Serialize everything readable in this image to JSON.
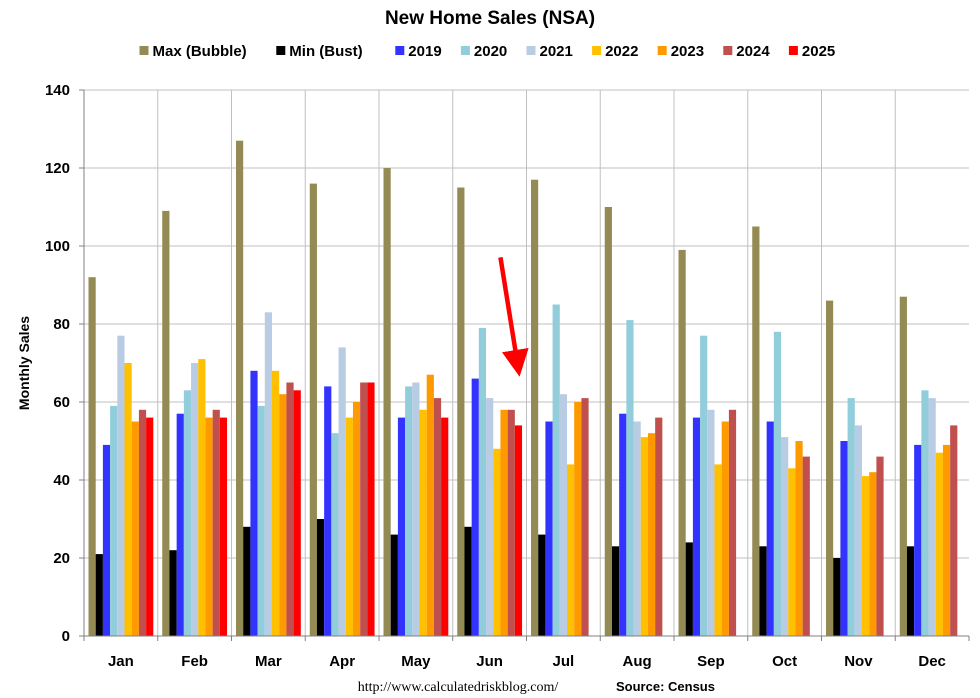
{
  "chart_data": {
    "type": "bar",
    "title": "New Home Sales (NSA)",
    "xlabel": "",
    "ylabel": "Monthly Sales",
    "ylim": [
      0,
      140
    ],
    "yticks": [
      0,
      20,
      40,
      60,
      80,
      100,
      120,
      140
    ],
    "grid": "horizontal",
    "legend_position": "top",
    "categories": [
      "Jan",
      "Feb",
      "Mar",
      "Apr",
      "May",
      "Jun",
      "Jul",
      "Aug",
      "Sep",
      "Oct",
      "Nov",
      "Dec"
    ],
    "series": [
      {
        "name": "Max (Bubble)",
        "color": "#948a54",
        "values": [
          92,
          109,
          127,
          116,
          120,
          115,
          117,
          110,
          99,
          105,
          86,
          87
        ]
      },
      {
        "name": "Min (Bust)",
        "color": "#000000",
        "values": [
          21,
          22,
          28,
          30,
          26,
          28,
          26,
          23,
          24,
          23,
          20,
          23
        ]
      },
      {
        "name": "2019",
        "color": "#3333ff",
        "values": [
          49,
          57,
          68,
          64,
          56,
          66,
          55,
          57,
          56,
          55,
          50,
          49
        ]
      },
      {
        "name": "2020",
        "color": "#92cddc",
        "values": [
          59,
          63,
          59,
          52,
          64,
          79,
          85,
          81,
          77,
          78,
          61,
          63
        ]
      },
      {
        "name": "2021",
        "color": "#b8cce4",
        "values": [
          77,
          70,
          83,
          74,
          65,
          61,
          62,
          55,
          58,
          51,
          54,
          61
        ]
      },
      {
        "name": "2022",
        "color": "#ffc000",
        "values": [
          70,
          71,
          68,
          56,
          58,
          48,
          44,
          51,
          44,
          43,
          41,
          47
        ]
      },
      {
        "name": "2023",
        "color": "#ff9900",
        "values": [
          55,
          56,
          62,
          60,
          67,
          58,
          60,
          52,
          55,
          50,
          42,
          49
        ]
      },
      {
        "name": "2024",
        "color": "#c0504d",
        "values": [
          58,
          58,
          65,
          65,
          61,
          58,
          61,
          56,
          58,
          46,
          46,
          54
        ]
      },
      {
        "name": "2025",
        "color": "#ff0000",
        "values": [
          56,
          56,
          63,
          65,
          56,
          54,
          null,
          null,
          null,
          null,
          null,
          null
        ]
      }
    ],
    "annotation": {
      "type": "arrow",
      "color": "#ff0000",
      "points_to": {
        "category": "Jun",
        "series": "2025"
      }
    }
  },
  "footer": {
    "url": "http://www.calculatedriskblog.com/",
    "source": "Source: Census"
  }
}
